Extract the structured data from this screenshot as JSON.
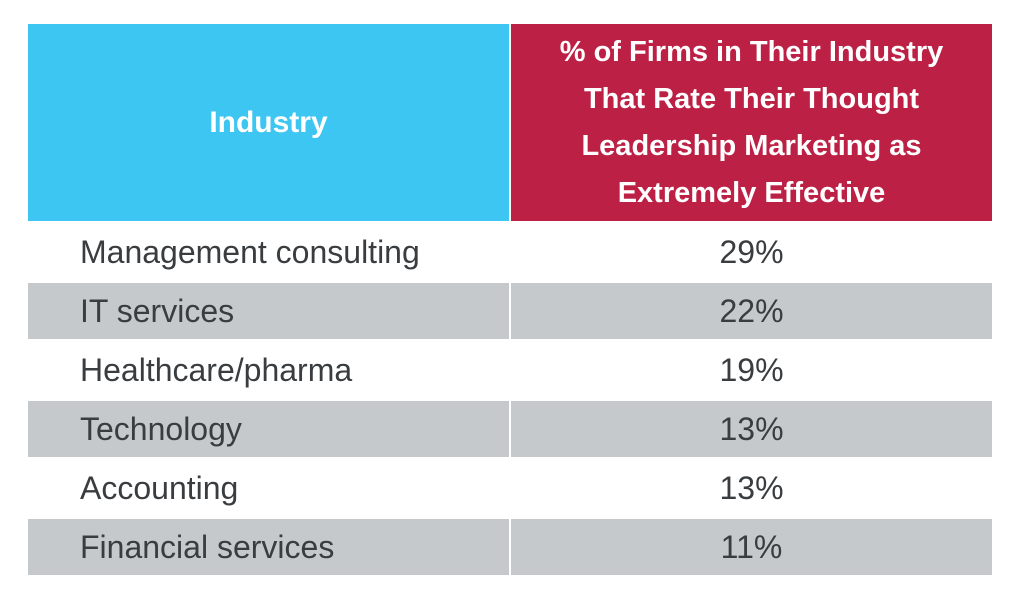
{
  "chart_data": {
    "type": "table",
    "columns": [
      "Industry",
      "% of Firms in Their Industry That Rate Their Thought Leadership Marketing as Extremely Effective"
    ],
    "rows": [
      {
        "industry": "Management consulting",
        "value_label": "29%",
        "value": 29
      },
      {
        "industry": "IT services",
        "value_label": "22%",
        "value": 22
      },
      {
        "industry": "Healthcare/pharma",
        "value_label": "19%",
        "value": 19
      },
      {
        "industry": "Technology",
        "value_label": "13%",
        "value": 13
      },
      {
        "industry": "Accounting",
        "value_label": "13%",
        "value": 13
      },
      {
        "industry": "Financial services",
        "value_label": "11%",
        "value": 11
      }
    ],
    "colors": {
      "header_left": "#3ec6f3",
      "header_right": "#bc2145",
      "row_shade": "#c6c9cc",
      "text": "#3a3d40"
    }
  }
}
